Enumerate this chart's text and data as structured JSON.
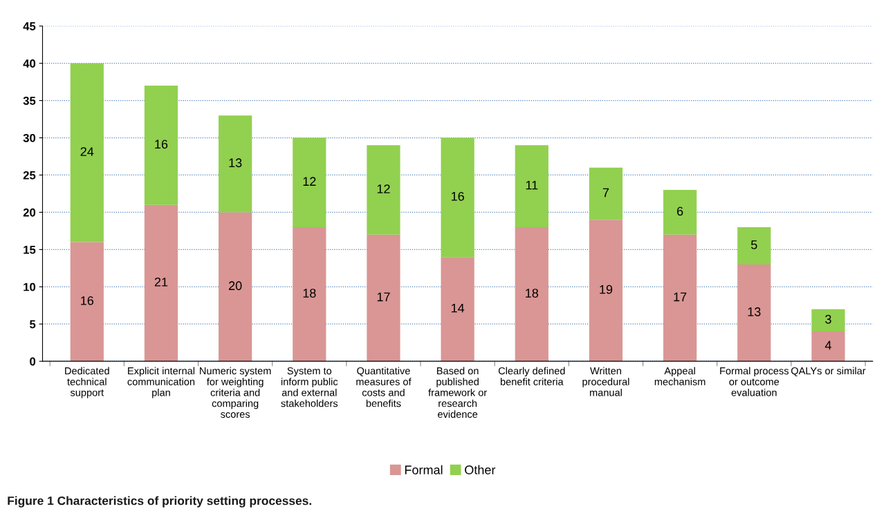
{
  "chart_data": {
    "type": "bar",
    "stacked": true,
    "categories": [
      "Dedicated\ntechnical\nsupport",
      "Explicit internal\ncommunication\nplan",
      "Numeric system\nfor weighting\ncriteria and\ncomparing\nscores",
      "System to\ninform public\nand external\nstakeholders",
      "Quantitative\nmeasures of\ncosts and\nbenefits",
      "Based on\npublished\nframework or\nresearch\nevidence",
      "Clearly defined\nbenefit criteria",
      "Written\nprocedural\nmanual",
      "Appeal\nmechanism",
      "Formal process\nor outcome\nevaluation",
      "QALYs or similar"
    ],
    "series": [
      {
        "name": "Formal",
        "color": "#d99694",
        "values": [
          16,
          21,
          20,
          18,
          17,
          14,
          18,
          19,
          17,
          13,
          4
        ]
      },
      {
        "name": "Other",
        "color": "#92d050",
        "values": [
          24,
          16,
          13,
          12,
          12,
          16,
          11,
          7,
          6,
          5,
          3
        ]
      }
    ],
    "ylim": [
      0,
      45
    ],
    "yticks": [
      0,
      5,
      10,
      15,
      20,
      25,
      30,
      35,
      40,
      45
    ],
    "grid": "y",
    "legend": "bottom",
    "data_labels": true,
    "annotations": [
      "Figure 1 Characteristics of priority setting processes."
    ]
  }
}
